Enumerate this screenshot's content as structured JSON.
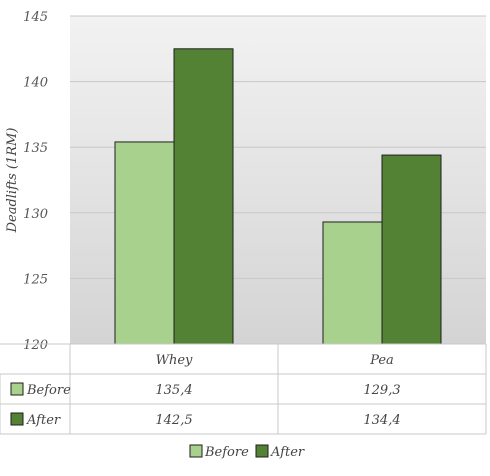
{
  "chart_data": {
    "type": "bar",
    "title": "",
    "xlabel": "",
    "ylabel": "Deadlifts (1RM)",
    "categories": [
      "Whey",
      "Pea"
    ],
    "series": [
      {
        "name": "Before",
        "values": [
          135.4,
          129.3
        ],
        "color": "#a9d18e",
        "display": [
          "135,4",
          "129,3"
        ]
      },
      {
        "name": "After",
        "values": [
          142.5,
          134.4
        ],
        "color": "#548235",
        "display": [
          "142,5",
          "134,4"
        ]
      }
    ],
    "ylim": [
      120,
      145
    ],
    "yticks": [
      120,
      125,
      130,
      135,
      140,
      145
    ],
    "grid": true,
    "legend": "bottom",
    "data_table": true
  }
}
